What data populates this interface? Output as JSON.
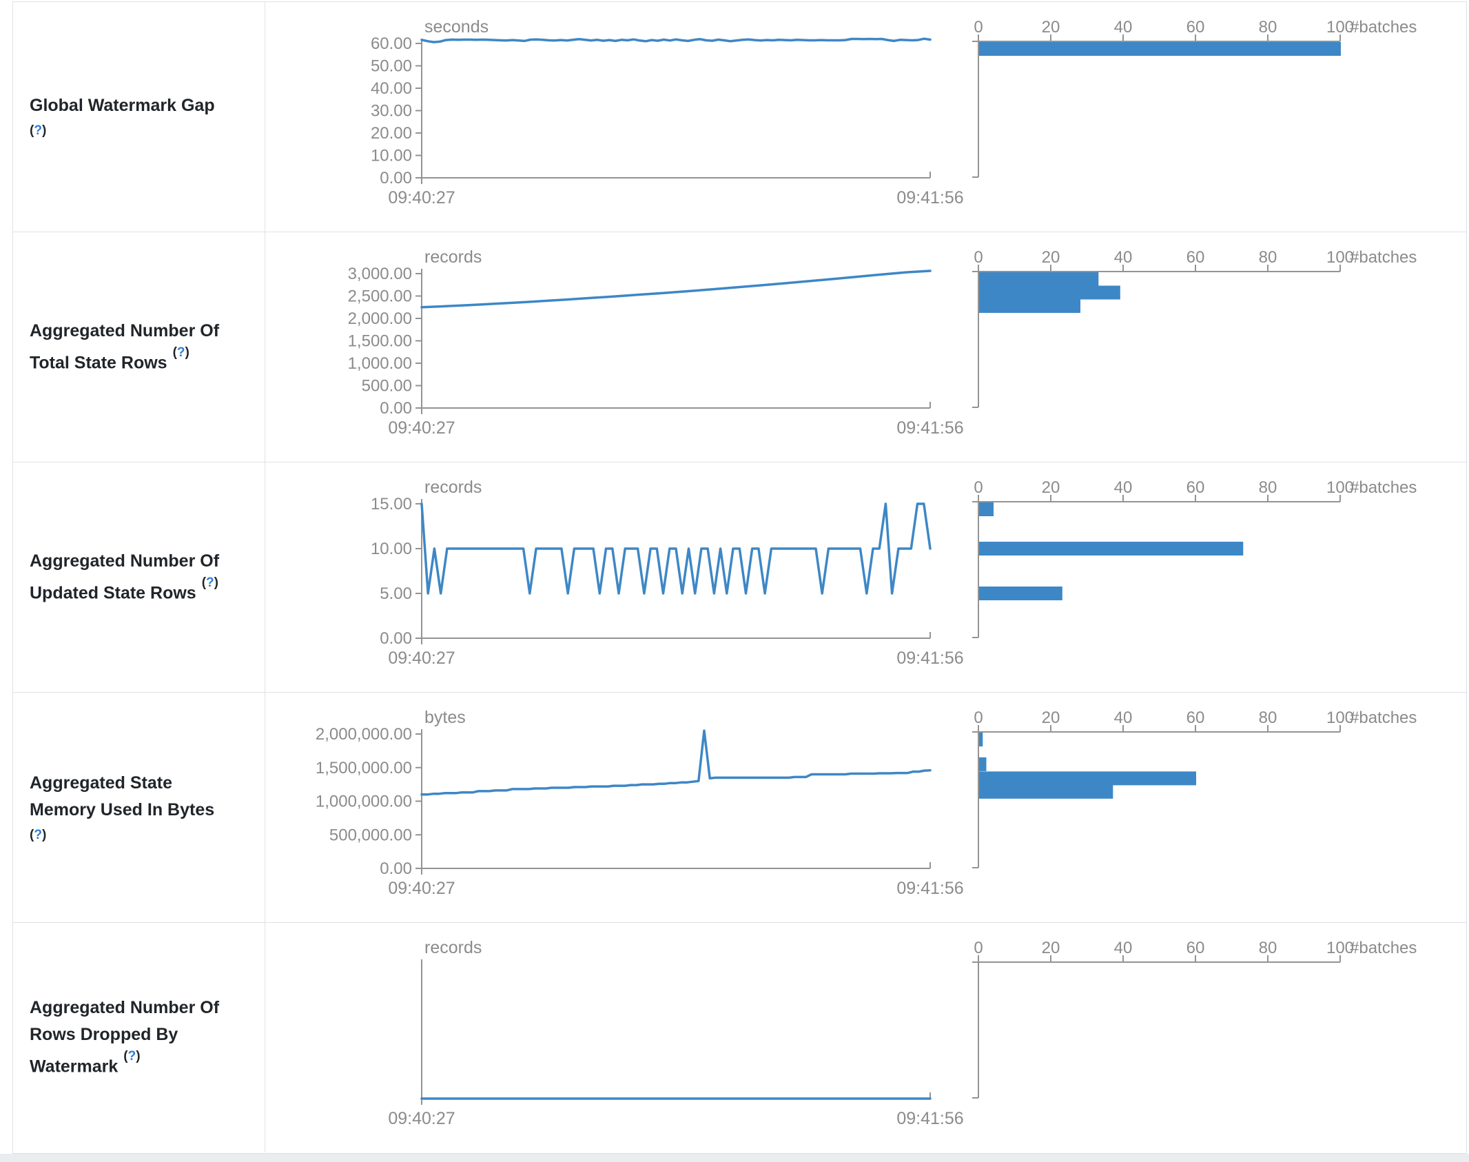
{
  "ui": {
    "help": {
      "open": "(",
      "q": "?",
      "close": ")"
    },
    "colors": {
      "accent_blue": "#3d87c6",
      "axis_gray": "#939393",
      "tick_text_gray": "#8b8b8b",
      "label_dark": "#212529",
      "border": "#dee2e6",
      "page_strip": "#e9edf0"
    }
  },
  "chart_data": [
    {
      "metric": "Global Watermark Gap",
      "type": "line",
      "unit": "seconds",
      "x_labels": [
        "09:40:27",
        "09:41:56"
      ],
      "y_ticks": [
        60,
        50,
        40,
        30,
        20,
        10,
        0
      ],
      "y_max": 60,
      "series": [
        61.6,
        61.0,
        60.6,
        60.8,
        61.5,
        61.7,
        61.6,
        61.7,
        61.7,
        61.6,
        61.7,
        61.6,
        61.5,
        61.4,
        61.3,
        61.5,
        61.3,
        61.1,
        61.7,
        61.8,
        61.6,
        61.4,
        61.3,
        61.5,
        61.3,
        61.6,
        61.9,
        61.6,
        61.3,
        61.6,
        61.2,
        61.5,
        61.1,
        61.6,
        61.4,
        61.8,
        61.3,
        61.0,
        61.5,
        61.2,
        61.7,
        61.3,
        61.8,
        61.4,
        61.1,
        61.6,
        61.9,
        61.4,
        61.2,
        61.7,
        61.4,
        61.0,
        61.3,
        61.6,
        61.8,
        61.5,
        61.3,
        61.5,
        61.4,
        61.6,
        61.5,
        61.4,
        61.6,
        61.5,
        61.4,
        61.4,
        61.5,
        61.4,
        61.4,
        61.4,
        61.5,
        62.0,
        62.0,
        61.9,
        62.0,
        61.9,
        62.0,
        61.5,
        61.1,
        61.6,
        61.5,
        61.4,
        61.5,
        62.1,
        61.7
      ],
      "histogram": {
        "axis_label": "#batches",
        "ticks": [
          0,
          20,
          40,
          60,
          80,
          100
        ],
        "bins": [
          {
            "value": 61,
            "count": 100
          }
        ]
      }
    },
    {
      "metric": "Aggregated Number Of Total State Rows",
      "type": "line",
      "unit": "records",
      "x_labels": [
        "09:40:27",
        "09:41:56"
      ],
      "y_ticks": [
        3000,
        2500,
        2000,
        1500,
        1000,
        500,
        0
      ],
      "y_max": 3000,
      "series": [
        2250,
        2272,
        2298,
        2326,
        2356,
        2388,
        2422,
        2458,
        2492,
        2530,
        2568,
        2608,
        2650,
        2694,
        2738,
        2784,
        2832,
        2880,
        2930,
        2982,
        3030,
        3062
      ],
      "histogram": {
        "axis_label": "#batches",
        "ticks": [
          0,
          20,
          40,
          60,
          80,
          100
        ],
        "bins": [
          {
            "value": 2885,
            "count": 33
          },
          {
            "value": 2577,
            "count": 39
          },
          {
            "value": 2277,
            "count": 28
          }
        ]
      }
    },
    {
      "metric": "Aggregated Number Of Updated State Rows",
      "type": "line",
      "unit": "records",
      "x_labels": [
        "09:40:27",
        "09:41:56"
      ],
      "y_ticks": [
        15,
        10,
        5,
        0
      ],
      "y_max": 15,
      "series": [
        15,
        5,
        10,
        5,
        10,
        10,
        10,
        10,
        10,
        10,
        10,
        10,
        10,
        10,
        10,
        10,
        10,
        5,
        10,
        10,
        10,
        10,
        10,
        5,
        10,
        10,
        10,
        10,
        5,
        10,
        10,
        5,
        10,
        10,
        10,
        5,
        10,
        10,
        5,
        10,
        10,
        5,
        10,
        5,
        10,
        10,
        5,
        10,
        5,
        10,
        10,
        5,
        10,
        10,
        5,
        10,
        10,
        10,
        10,
        10,
        10,
        10,
        10,
        5,
        10,
        10,
        10,
        10,
        10,
        10,
        5,
        10,
        10,
        15,
        5,
        10,
        10,
        10,
        15,
        15,
        10
      ],
      "histogram": {
        "axis_label": "#batches",
        "ticks": [
          0,
          20,
          40,
          60,
          80,
          100
        ],
        "bins": [
          {
            "value": 15,
            "count": 4
          },
          {
            "value": 10,
            "count": 73
          },
          {
            "value": 5,
            "count": 23
          }
        ]
      }
    },
    {
      "metric": "Aggregated State Memory Used In Bytes",
      "type": "line",
      "unit": "bytes",
      "x_labels": [
        "09:40:27",
        "09:41:56"
      ],
      "y_ticks": [
        2000000,
        1500000,
        1000000,
        500000,
        0
      ],
      "y_max": 2000000,
      "series": [
        1100000,
        1100000,
        1110000,
        1110000,
        1120000,
        1120000,
        1120000,
        1130000,
        1130000,
        1130000,
        1150000,
        1150000,
        1150000,
        1160000,
        1160000,
        1160000,
        1180000,
        1180000,
        1180000,
        1180000,
        1190000,
        1190000,
        1190000,
        1200000,
        1200000,
        1200000,
        1200000,
        1210000,
        1210000,
        1210000,
        1220000,
        1220000,
        1220000,
        1220000,
        1230000,
        1230000,
        1230000,
        1240000,
        1240000,
        1250000,
        1250000,
        1250000,
        1260000,
        1260000,
        1270000,
        1270000,
        1280000,
        1280000,
        1290000,
        1300000,
        2050000,
        1340000,
        1350000,
        1350000,
        1350000,
        1350000,
        1350000,
        1350000,
        1350000,
        1350000,
        1350000,
        1350000,
        1350000,
        1350000,
        1350000,
        1350000,
        1360000,
        1360000,
        1360000,
        1400000,
        1400000,
        1400000,
        1400000,
        1400000,
        1400000,
        1400000,
        1410000,
        1410000,
        1410000,
        1410000,
        1410000,
        1415000,
        1415000,
        1415000,
        1420000,
        1420000,
        1420000,
        1440000,
        1440000,
        1455000,
        1460000
      ],
      "histogram": {
        "axis_label": "#batches",
        "ticks": [
          0,
          20,
          40,
          60,
          80,
          100
        ],
        "bins": [
          {
            "value": 2050000,
            "count": 1
          },
          {
            "value": 1550000,
            "count": 2
          },
          {
            "value": 1340000,
            "count": 60
          },
          {
            "value": 1140000,
            "count": 37
          }
        ]
      }
    },
    {
      "metric": "Aggregated Number Of Rows Dropped By Watermark",
      "type": "line",
      "unit": "records",
      "x_labels": [
        "09:40:27",
        "09:41:56"
      ],
      "y_ticks": [],
      "y_max": 1,
      "series": [
        0,
        0
      ],
      "histogram": {
        "axis_label": "#batches",
        "ticks": [
          0,
          20,
          40,
          60,
          80,
          100
        ],
        "bins": []
      }
    }
  ]
}
